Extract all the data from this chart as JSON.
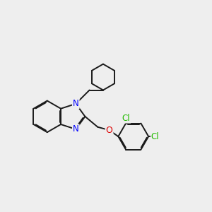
{
  "background_color": "#eeeeee",
  "bond_color": "#1a1a1a",
  "N_color": "#0000ff",
  "O_color": "#dd0000",
  "Cl_color": "#22bb00",
  "bond_width": 1.4,
  "dbo": 0.04,
  "figsize": [
    3.0,
    3.0
  ],
  "dpi": 100,
  "xlim": [
    0,
    10
  ],
  "ylim": [
    0,
    10
  ]
}
